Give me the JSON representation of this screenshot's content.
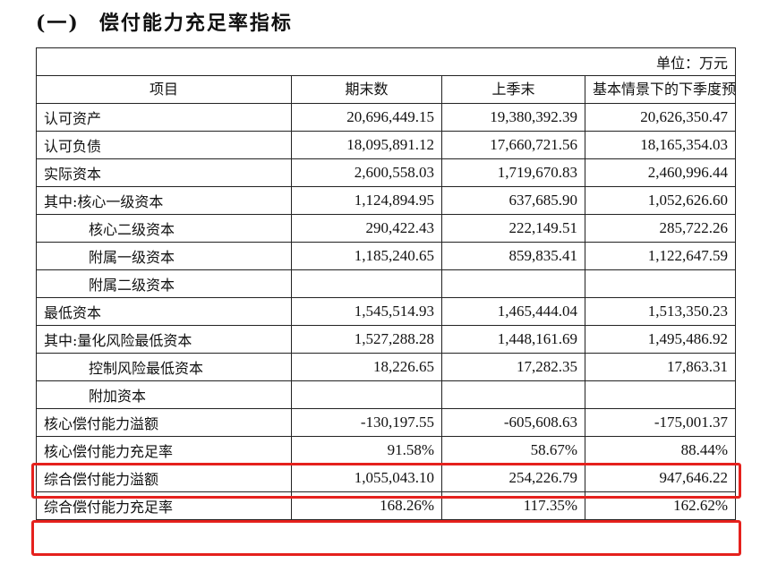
{
  "heading": {
    "number": "(一)",
    "title": "偿付能力充足率指标"
  },
  "table": {
    "unit": "单位：万元",
    "headers": [
      "项目",
      "期末数",
      "上季末",
      "基本情景下的下季度预测数"
    ],
    "rows": [
      {
        "label": "认可资产",
        "indent": false,
        "values": [
          "20,696,449.15",
          "19,380,392.39",
          "20,626,350.47"
        ]
      },
      {
        "label": "认可负债",
        "indent": false,
        "values": [
          "18,095,891.12",
          "17,660,721.56",
          "18,165,354.03"
        ]
      },
      {
        "label": "实际资本",
        "indent": false,
        "values": [
          "2,600,558.03",
          "1,719,670.83",
          "2,460,996.44"
        ]
      },
      {
        "label": "其中:核心一级资本",
        "indent": false,
        "values": [
          "1,124,894.95",
          "637,685.90",
          "1,052,626.60"
        ]
      },
      {
        "label": "核心二级资本",
        "indent": true,
        "values": [
          "290,422.43",
          "222,149.51",
          "285,722.26"
        ]
      },
      {
        "label": "附属一级资本",
        "indent": true,
        "values": [
          "1,185,240.65",
          "859,835.41",
          "1,122,647.59"
        ]
      },
      {
        "label": "附属二级资本",
        "indent": true,
        "values": [
          "",
          "",
          ""
        ]
      },
      {
        "label": "最低资本",
        "indent": false,
        "values": [
          "1,545,514.93",
          "1,465,444.04",
          "1,513,350.23"
        ]
      },
      {
        "label": "其中:量化风险最低资本",
        "indent": false,
        "values": [
          "1,527,288.28",
          "1,448,161.69",
          "1,495,486.92"
        ]
      },
      {
        "label": "控制风险最低资本",
        "indent": true,
        "values": [
          "18,226.65",
          "17,282.35",
          "17,863.31"
        ]
      },
      {
        "label": "附加资本",
        "indent": true,
        "values": [
          "",
          "",
          ""
        ]
      },
      {
        "label": "核心偿付能力溢额",
        "indent": false,
        "values": [
          "-130,197.55",
          "-605,608.63",
          "-175,001.37"
        ]
      },
      {
        "label": "核心偿付能力充足率",
        "indent": false,
        "values": [
          "91.58%",
          "58.67%",
          "88.44%"
        ]
      },
      {
        "label": "综合偿付能力溢额",
        "indent": false,
        "values": [
          "1,055,043.10",
          "254,226.79",
          "947,646.22"
        ]
      },
      {
        "label": "综合偿付能力充足率",
        "indent": false,
        "values": [
          "168.26%",
          "117.35%",
          "162.62%"
        ]
      }
    ]
  },
  "highlight_color": "#e5211d"
}
